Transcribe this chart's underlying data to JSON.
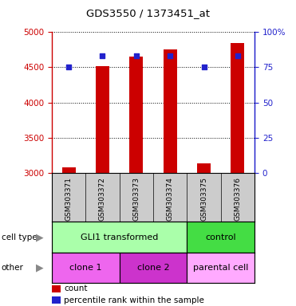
{
  "title": "GDS3550 / 1373451_at",
  "samples": [
    "GSM303371",
    "GSM303372",
    "GSM303373",
    "GSM303374",
    "GSM303375",
    "GSM303376"
  ],
  "counts": [
    3080,
    4520,
    4650,
    4760,
    3130,
    4850
  ],
  "percentiles": [
    75,
    83,
    83,
    83,
    75,
    83
  ],
  "ylim_left": [
    3000,
    5000
  ],
  "ylim_right": [
    0,
    100
  ],
  "yticks_left": [
    3000,
    3500,
    4000,
    4500,
    5000
  ],
  "yticks_right": [
    0,
    25,
    50,
    75,
    100
  ],
  "bar_color": "#cc0000",
  "dot_color": "#2222cc",
  "bar_width": 0.4,
  "cell_type_labels": [
    "GLI1 transformed",
    "control"
  ],
  "cell_type_color_gli": "#aaffaa",
  "cell_type_color_ctrl": "#44dd44",
  "other_labels": [
    "clone 1",
    "clone 2",
    "parental cell"
  ],
  "other_color_clone1": "#ee66ee",
  "other_color_clone2": "#cc33cc",
  "other_color_parental": "#ffaaff",
  "bg_color": "#cccccc",
  "legend_count": "count",
  "legend_pct": "percentile rank within the sample"
}
